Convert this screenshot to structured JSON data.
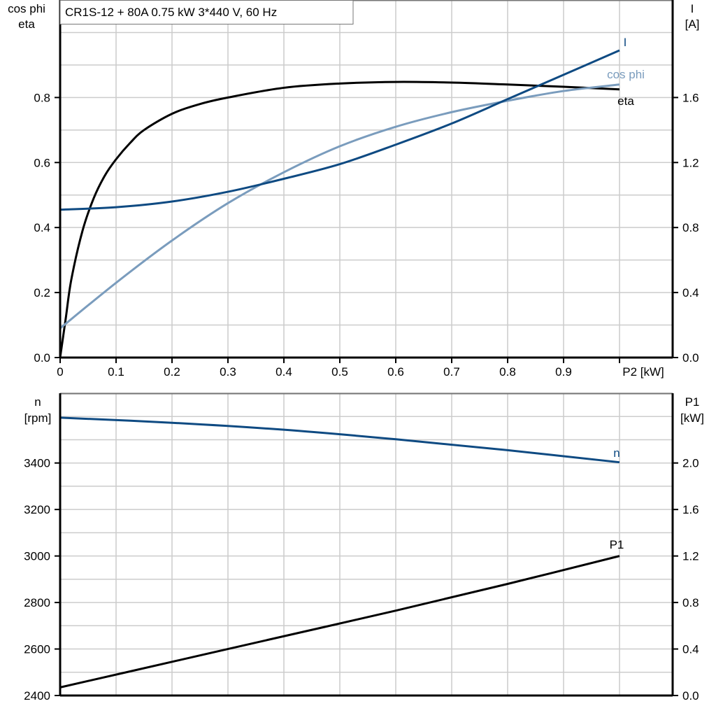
{
  "title": "CR1S-12 + 80A   0.75 kW   3*440 V, 60 Hz",
  "colors": {
    "eta": "#000000",
    "cos_phi": "#7a9cbd",
    "I": "#0e4a82",
    "n": "#0e4a82",
    "P1": "#000000",
    "grid": "#cccccc"
  },
  "chart_data": [
    {
      "type": "line",
      "xlabel": "P2 [kW]",
      "ylabel_left": [
        "cos phi",
        "eta"
      ],
      "ylabel_right": [
        "I",
        "[A]"
      ],
      "xlim": [
        0,
        1.095
      ],
      "ylim_left": [
        0,
        1.1
      ],
      "ylim_right": [
        0,
        2.2
      ],
      "x_ticks": [
        "0",
        "0.1",
        "0.2",
        "0.3",
        "0.4",
        "0.5",
        "0.6",
        "0.7",
        "0.8",
        "0.9"
      ],
      "y_left_ticks": [
        "0.0",
        "0.2",
        "0.4",
        "0.6",
        "0.8"
      ],
      "y_right_ticks": [
        "0.0",
        "0.4",
        "0.8",
        "1.2",
        "1.6"
      ],
      "grid": true,
      "series": [
        {
          "name": "eta",
          "axis": "left",
          "x": [
            0,
            0.01,
            0.02,
            0.04,
            0.06,
            0.08,
            0.1,
            0.125,
            0.15,
            0.2,
            0.25,
            0.3,
            0.4,
            0.5,
            0.6,
            0.7,
            0.8,
            0.9,
            1.0
          ],
          "y": [
            0,
            0.12,
            0.24,
            0.39,
            0.49,
            0.56,
            0.61,
            0.66,
            0.7,
            0.75,
            0.78,
            0.8,
            0.83,
            0.843,
            0.848,
            0.846,
            0.84,
            0.833,
            0.825
          ]
        },
        {
          "name": "cos phi",
          "axis": "left",
          "x": [
            0,
            0.1,
            0.2,
            0.3,
            0.4,
            0.5,
            0.6,
            0.7,
            0.8,
            0.9,
            1.0
          ],
          "y": [
            0.09,
            0.23,
            0.36,
            0.475,
            0.57,
            0.65,
            0.71,
            0.755,
            0.79,
            0.82,
            0.84
          ]
        },
        {
          "name": "I",
          "axis": "right",
          "x": [
            0,
            0.1,
            0.2,
            0.3,
            0.4,
            0.5,
            0.6,
            0.7,
            0.8,
            0.9,
            1.0
          ],
          "y": [
            0.91,
            0.925,
            0.96,
            1.02,
            1.1,
            1.19,
            1.31,
            1.44,
            1.59,
            1.74,
            1.89
          ]
        }
      ]
    },
    {
      "type": "line",
      "ylabel_left": [
        "n",
        "[rpm]"
      ],
      "ylabel_right": [
        "P1",
        "[kW]"
      ],
      "xlim": [
        0,
        1.095
      ],
      "ylim_left": [
        2400,
        3700
      ],
      "ylim_right": [
        0,
        2.6
      ],
      "y_left_ticks": [
        "2400",
        "2600",
        "2800",
        "3000",
        "3200",
        "3400"
      ],
      "y_right_ticks": [
        "0.0",
        "0.4",
        "0.8",
        "1.2",
        "1.6",
        "2.0"
      ],
      "grid": true,
      "series": [
        {
          "name": "n",
          "axis": "left",
          "x": [
            0,
            0.2,
            0.4,
            0.6,
            0.8,
            1.0
          ],
          "y": [
            3595,
            3573,
            3543,
            3502,
            3455,
            3403
          ]
        },
        {
          "name": "P1",
          "axis": "right",
          "x": [
            0,
            0.2,
            0.4,
            0.6,
            0.8,
            1.0
          ],
          "y": [
            0.07,
            0.29,
            0.51,
            0.73,
            0.96,
            1.2
          ]
        }
      ]
    }
  ]
}
